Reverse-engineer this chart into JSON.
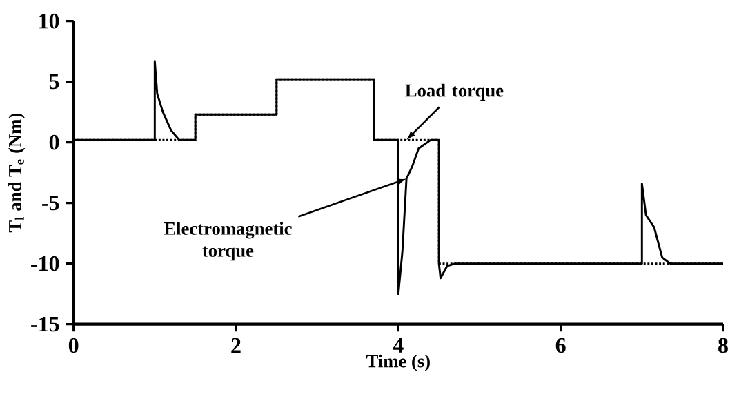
{
  "chart_data": {
    "type": "line",
    "xlabel": "Time (s)",
    "ylabel": "T$_{l}$ and T$_{e}$ (Nm)",
    "xlim": [
      0,
      8
    ],
    "ylim": [
      -15,
      10
    ],
    "xticks": [
      0,
      2,
      4,
      6,
      8
    ],
    "yticks": [
      -15,
      -10,
      -5,
      0,
      5,
      10
    ],
    "series": [
      {
        "color": "#000000",
        "line_style": "solid",
        "x": [
          0,
          1.0,
          1.0,
          1.03,
          1.1,
          1.2,
          1.3,
          1.5,
          1.5,
          2.5,
          2.5,
          3.7,
          3.7,
          4.0,
          4.0,
          4.05,
          4.1,
          4.17,
          4.25,
          4.4,
          4.5,
          4.5,
          4.52,
          4.6,
          4.7,
          7.0,
          7.0,
          7.05,
          7.15,
          7.25,
          7.35,
          8
        ],
        "values": [
          0.2,
          0.2,
          6.7,
          4,
          2.5,
          1,
          0.2,
          0.2,
          2.3,
          2.3,
          5.2,
          5.2,
          0.2,
          0.2,
          -12.5,
          -9,
          -3,
          -2,
          -0.5,
          0.2,
          0.2,
          -10,
          -11.2,
          -10.2,
          -10,
          -10,
          -3.4,
          -6,
          -7,
          -9.5,
          -10,
          -10
        ]
      },
      {
        "color": "#000000",
        "line_style": "dotted",
        "x": [
          0,
          1.5,
          1.5,
          2.5,
          2.5,
          3.7,
          3.7,
          4.5,
          4.5,
          8
        ],
        "values": [
          0.2,
          0.2,
          2.3,
          2.3,
          5.2,
          5.2,
          0.2,
          0.2,
          -10,
          -10
        ]
      }
    ],
    "annotations": [
      {
        "text": "Load torque",
        "x": 4.1,
        "y": 0.2
      },
      {
        "text": "Electromagnetic\ntorque",
        "x": 4.1,
        "y": -3
      }
    ]
  }
}
